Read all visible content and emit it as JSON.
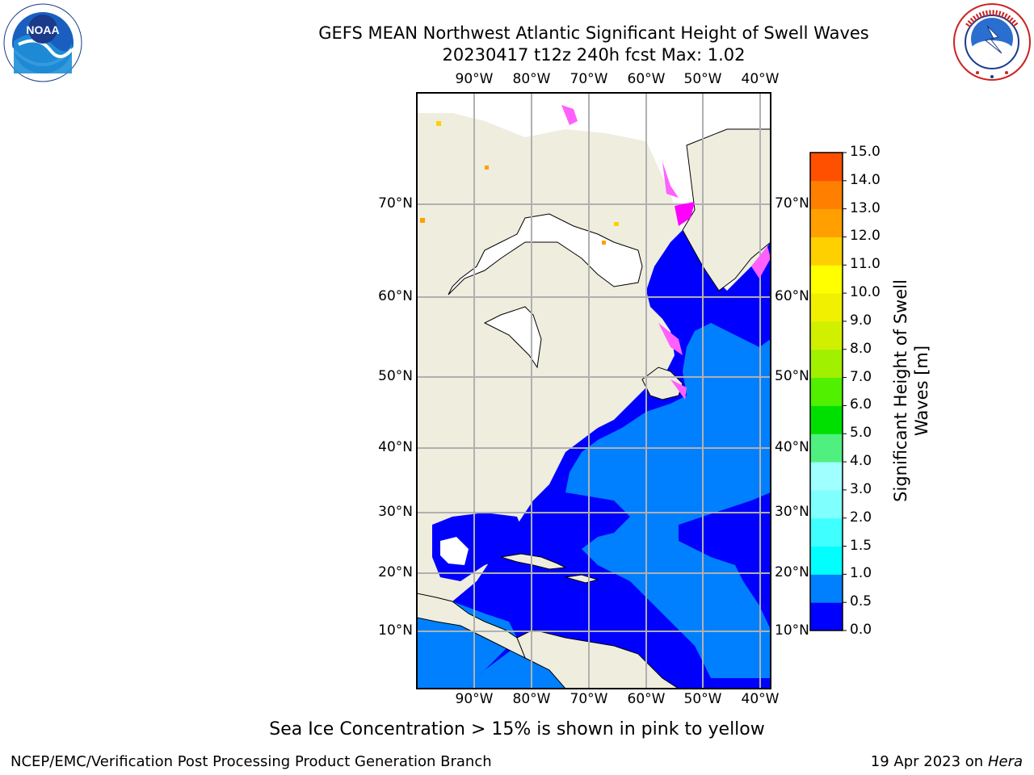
{
  "header": {
    "title_line1": "GEFS MEAN Northwest Atlantic Significant Height of Swell Waves",
    "title_line2": "20230417 t12z 240h fcst   Max: 1.02"
  },
  "logos": {
    "noaa": "NOAA",
    "nws_text": "NATIONAL WEATHER SERVICE"
  },
  "map": {
    "lon_labels": [
      "90°W",
      "80°W",
      "70°W",
      "60°W",
      "50°W",
      "40°W"
    ],
    "lat_labels": [
      "70°N",
      "60°N",
      "50°N",
      "40°N",
      "30°N",
      "20°N",
      "10°N"
    ],
    "colors": {
      "land": "#efedde",
      "ice_shelf": "#ffffff",
      "sea_low": "#0000ff",
      "sea_mid": "#0080ff",
      "grid": "#b0b0b0"
    }
  },
  "colorbar": {
    "label_line1": "Significant Height of Swell",
    "label_line2": "Waves [m]",
    "ticks": [
      "0.0",
      "0.5",
      "1.0",
      "1.5",
      "2.0",
      "3.0",
      "4.0",
      "5.0",
      "6.0",
      "7.0",
      "8.0",
      "9.0",
      "10.0",
      "11.0",
      "12.0",
      "13.0",
      "14.0",
      "15.0"
    ],
    "bin_colors": [
      "#0000ff",
      "#0080ff",
      "#00ffff",
      "#40ffff",
      "#80ffff",
      "#a0ffff",
      "#50f080",
      "#00e000",
      "#50f000",
      "#a0f000",
      "#d0f000",
      "#f0f000",
      "#ffff00",
      "#ffd000",
      "#ffa000",
      "#ff8000",
      "#ff5000",
      "#ff2000",
      "#ff0000"
    ]
  },
  "caption": "Sea Ice Concentration > 15% is shown in pink to yellow",
  "footer": {
    "left": "NCEP/EMC/Verification Post Processing Product Generation Branch",
    "date": "19 Apr 2023 on ",
    "machine": "Hera"
  }
}
